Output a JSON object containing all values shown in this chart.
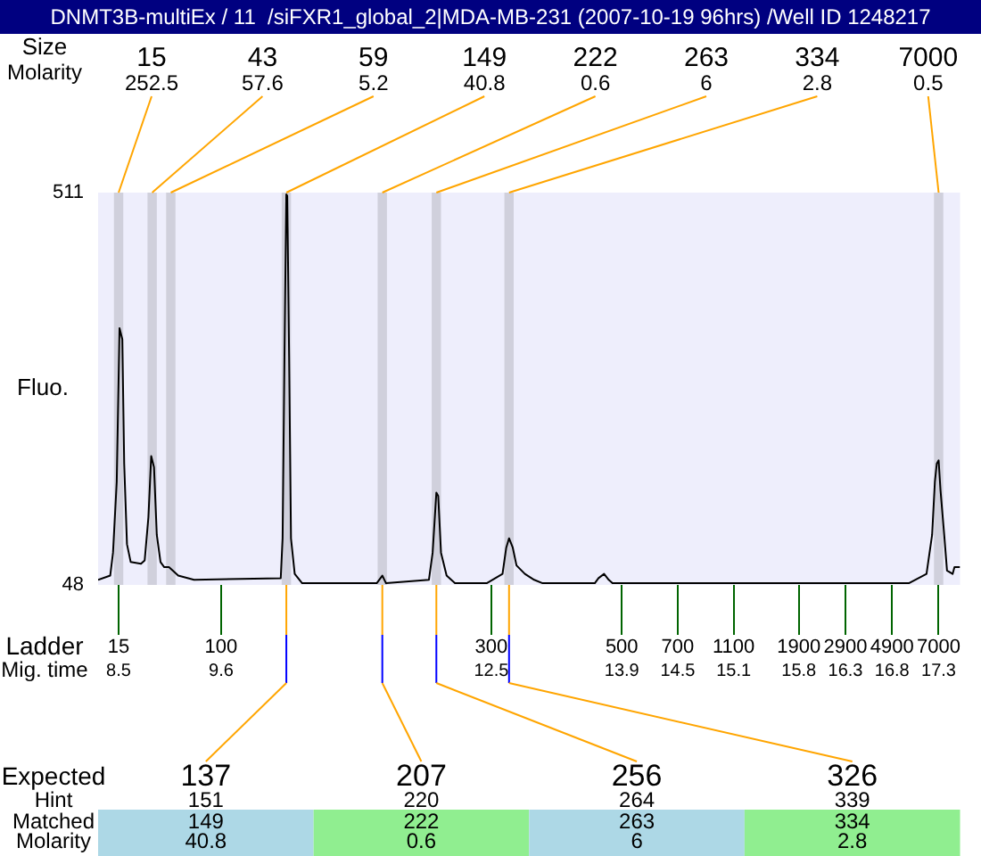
{
  "chart_data": {
    "type": "line",
    "title": "DNMT3B-multiEx / 11  /siFXR1_global_2|MDA-MB-231 (2007-10-19 96hrs) /Well ID 1248217",
    "ylabel": "Fluo.",
    "series": [
      {
        "color": "#000000",
        "x": [
          8.28,
          8.41,
          8.44,
          8.48,
          8.51,
          8.54,
          8.56,
          8.59,
          8.63,
          8.74,
          8.78,
          8.82,
          8.85,
          8.88,
          8.91,
          8.95,
          8.99,
          9.04,
          9.08,
          9.14,
          9.31,
          10.24,
          10.26,
          10.28,
          10.3,
          10.31,
          10.33,
          10.35,
          10.39,
          10.47,
          11.27,
          11.33,
          11.37,
          11.83,
          11.87,
          11.91,
          11.93,
          11.96,
          12.02,
          12.11,
          12.45,
          12.62,
          12.66,
          12.69,
          12.73,
          12.77,
          12.86,
          12.96,
          13.05,
          13.61,
          13.65,
          13.71,
          13.76,
          13.8,
          16.98,
          17.17,
          17.23,
          17.26,
          17.28,
          17.3,
          17.32,
          17.36,
          17.39,
          17.45,
          17.47,
          17.53
        ],
        "values": [
          54,
          59,
          86,
          170,
          351,
          338,
          191,
          96,
          75,
          73,
          77,
          128,
          200,
          187,
          107,
          75,
          69,
          69,
          65,
          59,
          54,
          56,
          103,
          317,
          509,
          507,
          317,
          103,
          61,
          50,
          50,
          59,
          50,
          54,
          86,
          157,
          153,
          86,
          59,
          50,
          50,
          61,
          92,
          103,
          92,
          71,
          61,
          54,
          50,
          50,
          56,
          61,
          54,
          50,
          50,
          61,
          107,
          170,
          191,
          195,
          160,
          107,
          65,
          61,
          69,
          69
        ]
      }
    ],
    "xlim": [
      8.28,
      17.53
    ],
    "xticks": [
      8.5,
      9.6,
      12.5,
      13.9,
      14.5,
      15.1,
      15.8,
      16.3,
      16.8,
      17.3
    ],
    "ylim": [
      48,
      511
    ],
    "yticks": [
      48,
      511
    ],
    "grid": false,
    "legend": false,
    "bands": [
      {
        "axis": "x",
        "from": 8.45,
        "to": 8.55,
        "color": "#d0d0dc"
      },
      {
        "axis": "x",
        "from": 8.81,
        "to": 8.91,
        "color": "#d0d0dc"
      },
      {
        "axis": "x",
        "from": 9.01,
        "to": 9.11,
        "color": "#d0d0dc"
      },
      {
        "axis": "x",
        "from": 10.25,
        "to": 10.35,
        "color": "#d0d0dc"
      },
      {
        "axis": "x",
        "from": 11.28,
        "to": 11.38,
        "color": "#d0d0dc"
      },
      {
        "axis": "x",
        "from": 11.86,
        "to": 11.96,
        "color": "#d0d0dc"
      },
      {
        "axis": "x",
        "from": 12.64,
        "to": 12.74,
        "color": "#d0d0dc"
      },
      {
        "axis": "x",
        "from": 17.25,
        "to": 17.35,
        "color": "#d0d0dc"
      }
    ],
    "annotations": [
      "Size",
      "Molarity",
      "Ladder",
      "Mig. time",
      "Expected",
      "Hint",
      "Matched",
      "Molarity",
      "15",
      "100",
      "300",
      "500",
      "700",
      "1100",
      "1900",
      "2900",
      "4900",
      "7000",
      {
        "text": "15\n252.5",
        "x": 8.5
      },
      {
        "text": "43\n57.6",
        "x": 8.86
      },
      {
        "text": "59\n5.2",
        "x": 9.06
      },
      {
        "text": "149\n40.8",
        "x": 10.3
      },
      {
        "text": "222\n0.6",
        "x": 11.33
      },
      {
        "text": "263\n6",
        "x": 11.91
      },
      {
        "text": "334\n2.8",
        "x": 12.69
      },
      {
        "text": "7000\n0.5",
        "x": 17.3
      },
      {
        "text": "137\n151\n149\n40.8",
        "x": 10.3
      },
      {
        "text": "207\n220\n222\n0.6",
        "x": 11.33
      },
      {
        "text": "256\n264\n263\n6",
        "x": 11.91
      },
      {
        "text": "326\n339\n334\n2.8",
        "x": 12.69
      }
    ]
  }
}
